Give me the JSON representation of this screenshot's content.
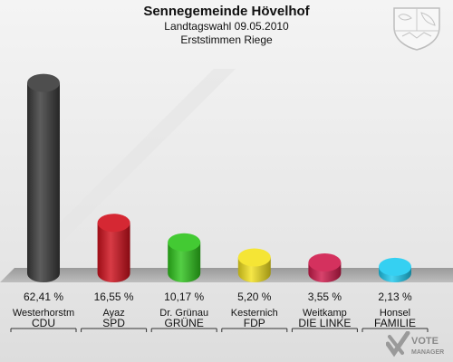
{
  "header": {
    "title": "Sennegemeinde Hövelhof",
    "subtitle": "Landtagswahl 09.05.2010",
    "subtitle2": "Erststimmen Riege"
  },
  "chart_data": {
    "type": "bar",
    "ylim": [
      0,
      70
    ],
    "grid": false,
    "categories": [
      "CDU",
      "SPD",
      "GRÜNE",
      "FDP",
      "DIE LINKE",
      "FAMILIE"
    ],
    "candidates": [
      "Westerhorstm",
      "Ayaz",
      "Dr. Grünau",
      "Kesternich",
      "Weitkamp",
      "Honsel"
    ],
    "values": [
      62.41,
      16.55,
      10.17,
      5.2,
      3.55,
      2.13
    ],
    "value_labels": [
      "62,41 %",
      "16,55 %",
      "10,17 %",
      "5,20 %",
      "3,55 %",
      "2,13 %"
    ],
    "colors": [
      "#3a3a3a",
      "#d0101c",
      "#2ec41c",
      "#f4e21e",
      "#cf1a4c",
      "#1ecbf0"
    ]
  },
  "branding": {
    "logo_line1": "VOTE",
    "logo_line2": "MANAGER",
    "crest_icon": "nrw-coat-of-arms-icon"
  }
}
